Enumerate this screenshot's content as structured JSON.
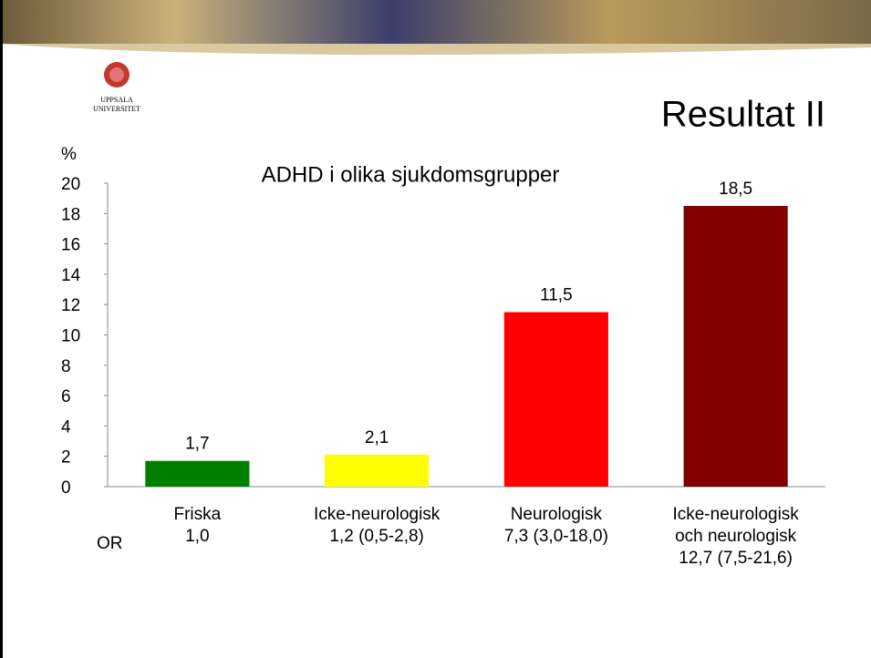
{
  "logo": {
    "text": [
      "UPPSALA",
      "UNIVERSITET"
    ]
  },
  "slide_title": "Resultat II",
  "chart_data": {
    "type": "bar",
    "title": "ADHD i olika sjukdomsgrupper",
    "y_label": "%",
    "categories": [
      "Friska",
      "Icke-neurologisk",
      "Neurologisk",
      "Icke-neurologisk och neurologisk"
    ],
    "values": [
      1.7,
      2.1,
      11.5,
      18.5
    ],
    "value_labels": [
      "1,7",
      "2,1",
      "11,5",
      "18,5"
    ],
    "colors": [
      "#008000",
      "#ffff00",
      "#ff0000",
      "#800000"
    ],
    "ylim": [
      0,
      20
    ],
    "yticks": [
      0,
      2,
      4,
      6,
      8,
      10,
      12,
      14,
      16,
      18,
      20
    ],
    "grid": false,
    "or_label": "OR",
    "odds_ratios": [
      "1,0",
      "1,2 (0,5-2,8)",
      "7,3 (3,0-18,0)",
      "12,7 (7,5-21,6)"
    ]
  }
}
